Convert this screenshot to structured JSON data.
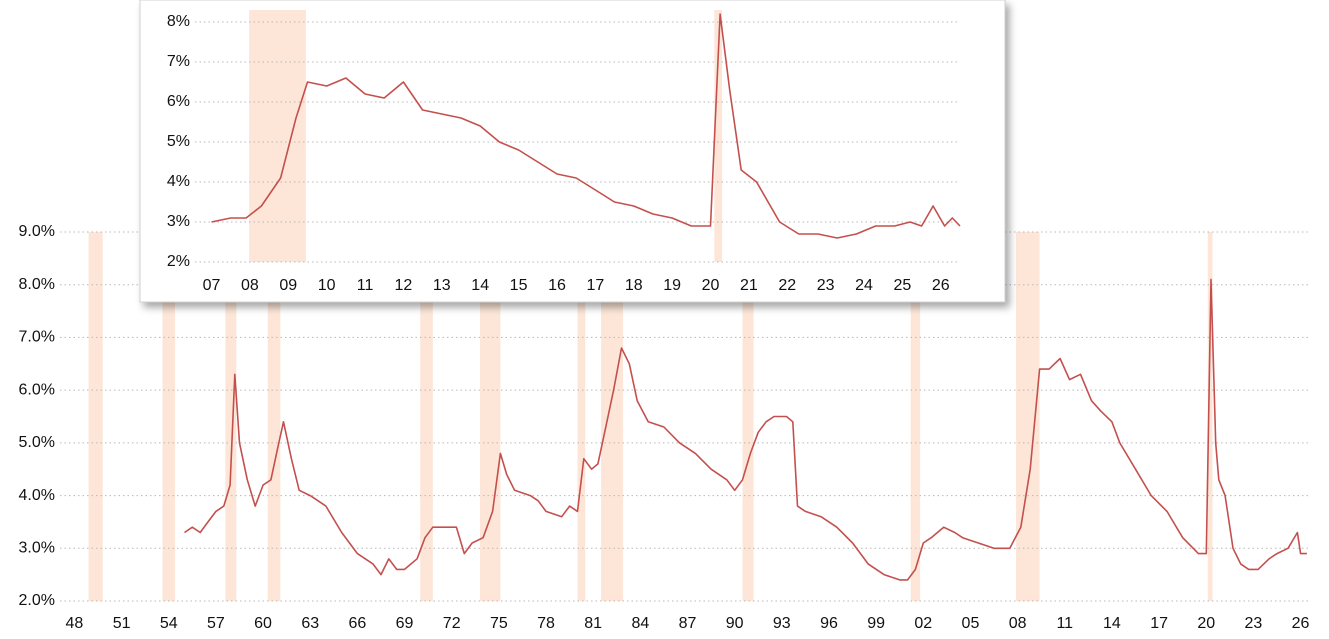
{
  "chart_data": [
    {
      "type": "line",
      "color": "#c4504e",
      "band_color": "#fde6d8",
      "xlim": [
        1947.4,
        2026.6
      ],
      "ylim": [
        2,
        9
      ],
      "xticks": [
        {
          "value": 1948,
          "label": "48"
        },
        {
          "value": 1951,
          "label": "51"
        },
        {
          "value": 1954,
          "label": "54"
        },
        {
          "value": 1957,
          "label": "57"
        },
        {
          "value": 1960,
          "label": "60"
        },
        {
          "value": 1963,
          "label": "63"
        },
        {
          "value": 1966,
          "label": "66"
        },
        {
          "value": 1969,
          "label": "69"
        },
        {
          "value": 1972,
          "label": "72"
        },
        {
          "value": 1975,
          "label": "75"
        },
        {
          "value": 1978,
          "label": "78"
        },
        {
          "value": 1981,
          "label": "81"
        },
        {
          "value": 1984,
          "label": "84"
        },
        {
          "value": 1987,
          "label": "87"
        },
        {
          "value": 1990,
          "label": "90"
        },
        {
          "value": 1993,
          "label": "93"
        },
        {
          "value": 1996,
          "label": "96"
        },
        {
          "value": 1999,
          "label": "99"
        },
        {
          "value": 2002,
          "label": "02"
        },
        {
          "value": 2005,
          "label": "05"
        },
        {
          "value": 2008,
          "label": "08"
        },
        {
          "value": 2011,
          "label": "11"
        },
        {
          "value": 2014,
          "label": "14"
        },
        {
          "value": 2017,
          "label": "17"
        },
        {
          "value": 2020,
          "label": "20"
        },
        {
          "value": 2023,
          "label": "23"
        },
        {
          "value": 2026,
          "label": "26"
        }
      ],
      "yticks": [
        {
          "value": 2,
          "label": "2.0%"
        },
        {
          "value": 3,
          "label": "3.0%"
        },
        {
          "value": 4,
          "label": "4.0%"
        },
        {
          "value": 5,
          "label": "5.0%"
        },
        {
          "value": 6,
          "label": "6.0%"
        },
        {
          "value": 7,
          "label": "7.0%"
        },
        {
          "value": 8,
          "label": "8.0%"
        },
        {
          "value": 9,
          "label": "9.0%"
        }
      ],
      "grid": true,
      "shaded_ranges": [
        [
          1948.9,
          1949.8
        ],
        [
          1953.6,
          1954.4
        ],
        [
          1957.6,
          1958.3
        ],
        [
          1960.3,
          1961.1
        ],
        [
          1970.0,
          1970.8
        ],
        [
          1973.8,
          1975.1
        ],
        [
          1980.0,
          1980.5
        ],
        [
          1981.5,
          1982.9
        ],
        [
          1990.5,
          1991.2
        ],
        [
          2001.2,
          2001.8
        ],
        [
          2007.9,
          2009.4
        ],
        [
          2020.1,
          2020.4
        ]
      ],
      "x": [
        1955.0,
        1955.5,
        1956.0,
        1956.5,
        1957.0,
        1957.5,
        1957.9,
        1958.2,
        1958.5,
        1959.0,
        1959.5,
        1960.0,
        1960.5,
        1961.0,
        1961.3,
        1961.8,
        1962.3,
        1963.0,
        1964.0,
        1965.0,
        1966.0,
        1967.0,
        1967.5,
        1968.0,
        1968.5,
        1969.0,
        1969.8,
        1970.3,
        1970.8,
        1971.5,
        1972.3,
        1972.8,
        1973.3,
        1974.0,
        1974.6,
        1975.1,
        1975.5,
        1976.0,
        1977.0,
        1977.5,
        1978.0,
        1979.0,
        1979.5,
        1980.0,
        1980.4,
        1980.9,
        1981.3,
        1981.8,
        1982.3,
        1982.8,
        1983.3,
        1983.8,
        1984.5,
        1985.5,
        1986.5,
        1987.5,
        1988.5,
        1989.5,
        1990.0,
        1990.5,
        1991.0,
        1991.5,
        1992.0,
        1992.5,
        1993.3,
        1993.7,
        1994.0,
        1994.5,
        1995.5,
        1996.5,
        1997.5,
        1998.5,
        1999.5,
        2000.5,
        2001.0,
        2001.5,
        2002.0,
        2002.5,
        2003.3,
        2004.0,
        2004.5,
        2005.5,
        2006.5,
        2007.5,
        2008.2,
        2008.8,
        2009.4,
        2010.0,
        2010.7,
        2011.3,
        2012.0,
        2012.7,
        2013.3,
        2014.0,
        2014.5,
        2015.5,
        2016.5,
        2017.5,
        2018.5,
        2019.5,
        2020.0,
        2020.3,
        2020.6,
        2020.8,
        2021.2,
        2021.7,
        2022.2,
        2022.7,
        2023.3,
        2024.0,
        2024.5,
        2025.2,
        2025.8,
        2026.0,
        2026.4
      ],
      "values": [
        3.3,
        3.4,
        3.3,
        3.5,
        3.7,
        3.8,
        4.2,
        6.3,
        5.0,
        4.3,
        3.8,
        4.2,
        4.3,
        5.0,
        5.4,
        4.7,
        4.1,
        4.0,
        3.8,
        3.3,
        2.9,
        2.7,
        2.5,
        2.8,
        2.6,
        2.6,
        2.8,
        3.2,
        3.4,
        3.4,
        3.4,
        2.9,
        3.1,
        3.2,
        3.7,
        4.8,
        4.4,
        4.1,
        4.0,
        3.9,
        3.7,
        3.6,
        3.8,
        3.7,
        4.7,
        4.5,
        4.6,
        5.3,
        6.0,
        6.8,
        6.5,
        5.8,
        5.4,
        5.3,
        5.0,
        4.8,
        4.5,
        4.3,
        4.1,
        4.3,
        4.8,
        5.2,
        5.4,
        5.5,
        5.5,
        5.4,
        3.8,
        3.7,
        3.6,
        3.4,
        3.1,
        2.7,
        2.5,
        2.4,
        2.4,
        2.6,
        3.1,
        3.2,
        3.4,
        3.3,
        3.2,
        3.1,
        3.0,
        3.0,
        3.4,
        4.5,
        6.4,
        6.4,
        6.6,
        6.2,
        6.3,
        5.8,
        5.6,
        5.4,
        5.0,
        4.5,
        4.0,
        3.7,
        3.2,
        2.9,
        2.9,
        8.1,
        5.0,
        4.3,
        4.0,
        3.0,
        2.7,
        2.6,
        2.6,
        2.8,
        2.9,
        3.0,
        3.3,
        2.9,
        2.9
      ]
    },
    {
      "type": "line",
      "color": "#c4504e",
      "band_color": "#fde6d8",
      "xlim": [
        2006.7,
        2026.5
      ],
      "ylim": [
        2,
        8.3
      ],
      "xticks": [
        {
          "value": 2007,
          "label": "07"
        },
        {
          "value": 2008,
          "label": "08"
        },
        {
          "value": 2009,
          "label": "09"
        },
        {
          "value": 2010,
          "label": "10"
        },
        {
          "value": 2011,
          "label": "11"
        },
        {
          "value": 2012,
          "label": "12"
        },
        {
          "value": 2013,
          "label": "13"
        },
        {
          "value": 2014,
          "label": "14"
        },
        {
          "value": 2015,
          "label": "15"
        },
        {
          "value": 2016,
          "label": "16"
        },
        {
          "value": 2017,
          "label": "17"
        },
        {
          "value": 2018,
          "label": "18"
        },
        {
          "value": 2019,
          "label": "19"
        },
        {
          "value": 2020,
          "label": "20"
        },
        {
          "value": 2021,
          "label": "21"
        },
        {
          "value": 2022,
          "label": "22"
        },
        {
          "value": 2023,
          "label": "23"
        },
        {
          "value": 2024,
          "label": "24"
        },
        {
          "value": 2025,
          "label": "25"
        },
        {
          "value": 2026,
          "label": "26"
        }
      ],
      "yticks": [
        {
          "value": 2,
          "label": "2%"
        },
        {
          "value": 3,
          "label": "3%"
        },
        {
          "value": 4,
          "label": "4%"
        },
        {
          "value": 5,
          "label": "5%"
        },
        {
          "value": 6,
          "label": "6%"
        },
        {
          "value": 7,
          "label": "7%"
        },
        {
          "value": 8,
          "label": "8%"
        }
      ],
      "grid": true,
      "shaded_ranges": [
        [
          2007.98,
          2009.46
        ],
        [
          2020.1,
          2020.3
        ]
      ],
      "x": [
        2007.0,
        2007.5,
        2007.9,
        2008.3,
        2008.8,
        2009.2,
        2009.5,
        2010.0,
        2010.5,
        2011.0,
        2011.5,
        2012.0,
        2012.5,
        2013.0,
        2013.5,
        2014.0,
        2014.5,
        2015.0,
        2015.5,
        2016.0,
        2016.5,
        2017.0,
        2017.5,
        2018.0,
        2018.5,
        2019.0,
        2019.5,
        2020.0,
        2020.25,
        2020.5,
        2020.8,
        2021.2,
        2021.5,
        2021.8,
        2022.3,
        2022.8,
        2023.3,
        2023.8,
        2024.3,
        2024.8,
        2025.2,
        2025.5,
        2025.8,
        2026.1,
        2026.3,
        2026.5
      ],
      "values": [
        3.0,
        3.1,
        3.1,
        3.4,
        4.1,
        5.6,
        6.5,
        6.4,
        6.6,
        6.2,
        6.1,
        6.5,
        5.8,
        5.7,
        5.6,
        5.4,
        5.0,
        4.8,
        4.5,
        4.2,
        4.1,
        3.8,
        3.5,
        3.4,
        3.2,
        3.1,
        2.9,
        2.9,
        8.2,
        6.3,
        4.3,
        4.0,
        3.5,
        3.0,
        2.7,
        2.7,
        2.6,
        2.7,
        2.9,
        2.9,
        3.0,
        2.9,
        3.4,
        2.9,
        3.1,
        2.9
      ]
    }
  ]
}
